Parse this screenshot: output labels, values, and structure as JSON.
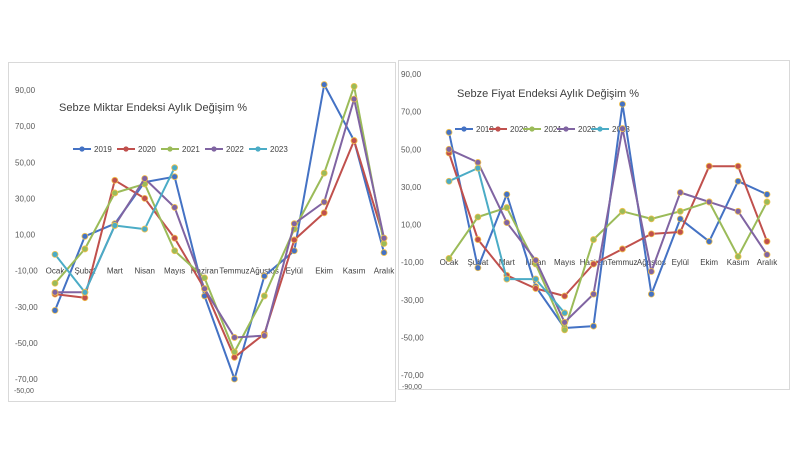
{
  "chart_data": [
    {
      "type": "line",
      "title": "Sebze Miktar Endeksi Aylık Değişim %",
      "categories": [
        "Ocak",
        "Şubat",
        "Mart",
        "Nisan",
        "Mayıs",
        "Haziran",
        "Temmuz",
        "Ağustos",
        "Eylül",
        "Ekim",
        "Kasım",
        "Aralık"
      ],
      "ylim": [
        -70,
        90
      ],
      "yticks": [
        "-70,00",
        "-50,00",
        "-30,00",
        "-10,00",
        "10,00",
        "30,00",
        "50,00",
        "70,00",
        "90,00"
      ],
      "ytick_values": [
        -70,
        -50,
        -30,
        -10,
        10,
        30,
        50,
        70,
        90
      ],
      "stray_label": "-50,00",
      "grid": false,
      "legend_position": "top",
      "series": [
        {
          "name": "2019",
          "color": "#4472c4",
          "values": [
            -32,
            9,
            16,
            39,
            42,
            -24,
            -70,
            -13,
            1,
            93,
            62,
            0
          ]
        },
        {
          "name": "2020",
          "color": "#c0504d",
          "values": [
            -23,
            -25,
            40,
            30,
            8,
            -20,
            -58,
            -45,
            7,
            22,
            62,
            8
          ]
        },
        {
          "name": "2021",
          "color": "#9bbb59",
          "values": [
            -17,
            2,
            33,
            38,
            1,
            -14,
            -55,
            -24,
            13,
            44,
            92,
            5
          ]
        },
        {
          "name": "2022",
          "color": "#8064a2",
          "values": [
            -22,
            -22,
            15,
            41,
            25,
            -20,
            -47,
            -46,
            16,
            28,
            85,
            8
          ]
        },
        {
          "name": "2023",
          "color": "#4bacc6",
          "values": [
            -1,
            -22,
            15,
            13,
            47,
            null,
            null,
            null,
            null,
            null,
            null,
            null
          ]
        }
      ]
    },
    {
      "type": "line",
      "title": "Sebze Fiyat Endeksi Aylık Değişim %",
      "categories": [
        "Ocak",
        "Şubat",
        "Mart",
        "Nisan",
        "Mayıs",
        "Haziran",
        "Temmuz",
        "Ağustos",
        "Eylül",
        "Ekim",
        "Kasım",
        "Aralık"
      ],
      "ylim": [
        -70,
        90
      ],
      "yticks": [
        "-70,00",
        "-50,00",
        "-30,00",
        "-10,00",
        "10,00",
        "30,00",
        "50,00",
        "70,00",
        "90,00"
      ],
      "ytick_values": [
        -70,
        -50,
        -30,
        -10,
        10,
        30,
        50,
        70,
        90
      ],
      "stray_label": "-90,00",
      "grid": false,
      "legend_position": "top",
      "series": [
        {
          "name": "2019",
          "color": "#4472c4",
          "values": [
            59,
            -13,
            26,
            -23,
            -45,
            -44,
            74,
            -27,
            13,
            1,
            33,
            26
          ]
        },
        {
          "name": "2020",
          "color": "#c0504d",
          "values": [
            48,
            2,
            -17,
            -24,
            -28,
            -11,
            -3,
            5,
            6,
            41,
            41,
            1
          ]
        },
        {
          "name": "2021",
          "color": "#9bbb59",
          "values": [
            -8,
            14,
            19,
            -11,
            -46,
            2,
            17,
            13,
            17,
            22,
            -7,
            22
          ]
        },
        {
          "name": "2022",
          "color": "#8064a2",
          "values": [
            50,
            43,
            11,
            -9,
            -42,
            -27,
            61,
            -15,
            27,
            22,
            17,
            -6
          ]
        },
        {
          "name": "2023",
          "color": "#4bacc6",
          "values": [
            33,
            40,
            -19,
            -19,
            -37,
            null,
            null,
            null,
            null,
            null,
            null,
            null
          ]
        }
      ]
    }
  ]
}
